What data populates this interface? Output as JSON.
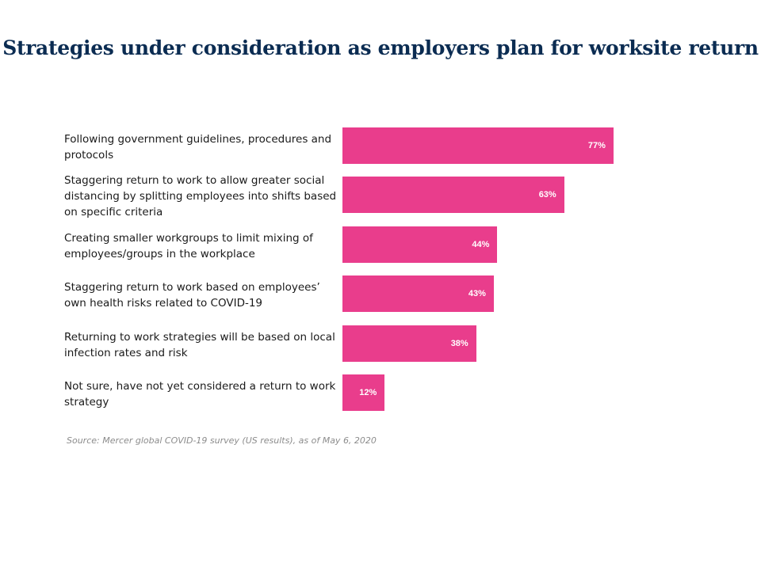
{
  "colors": {
    "title": "#0b2c52",
    "bar": "#e93d8c",
    "bar_value_text": "#ffffff",
    "label_text": "#1a1a1a",
    "source_text": "#8c8c8c"
  },
  "chart_data": {
    "type": "bar",
    "orientation": "horizontal",
    "title": "Strategies under consideration as employers plan for worksite return",
    "categories": [
      "Following government guidelines, procedures and protocols",
      "Staggering return to work to allow greater social distancing by splitting employees into shifts based on specific criteria",
      "Creating smaller workgroups to limit mixing of employees/groups in the workplace",
      "Staggering return to work based on employees’ own health risks related to COVID-19",
      "Returning to work strategies will be based on local infection rates and risk",
      "Not sure, have not yet considered a return to work strategy"
    ],
    "values": [
      77,
      63,
      44,
      43,
      38,
      12
    ],
    "value_labels": [
      "77%",
      "63%",
      "44%",
      "43%",
      "38%",
      "12%"
    ],
    "unit": "%",
    "xlim": [
      0,
      100
    ],
    "grid": false,
    "legend": "none",
    "source": "Source: Mercer global COVID-19 survey (US results), as of May 6, 2020"
  }
}
